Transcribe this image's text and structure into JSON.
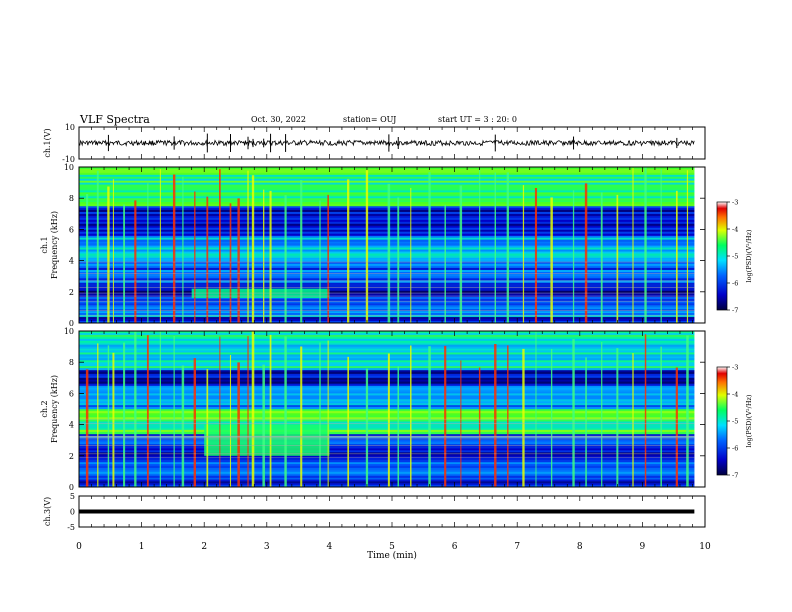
{
  "header": {
    "title": "VLF  Spectra",
    "date": "Oct. 30, 2022",
    "station": "station= OUJ",
    "start_ut": "start  UT =   3  : 20: 0"
  },
  "chart_data": [
    {
      "type": "line",
      "panel": "ch1-waveform",
      "ylabel": "ch.1(V)",
      "ylim": [
        -10,
        10
      ],
      "y_ticks": [
        "10",
        "-10"
      ],
      "xlim": [
        0,
        10
      ],
      "baseline": 0,
      "x_extent": [
        0,
        9.83
      ],
      "spike_times": [
        0.47,
        1.52,
        2.05,
        2.42,
        2.7,
        2.78,
        2.95,
        3.06,
        3.3,
        4.95,
        5.1,
        6.65,
        7.9,
        9.55
      ]
    },
    {
      "type": "heatmap",
      "panel": "ch1-spectrogram",
      "ylabel": "ch.1\nFrequency (kHz)",
      "ylim": [
        0,
        10
      ],
      "y_ticks": [
        "0",
        "2",
        "4",
        "6",
        "8",
        "10"
      ],
      "xlim": [
        0,
        10
      ],
      "x_extent": [
        0,
        9.83
      ],
      "colorbar": {
        "label": "log(PSD)(V²/Hz)",
        "range": [
          -7,
          -3
        ],
        "ticks": [
          "-3",
          "-4",
          "-5",
          "-6",
          "-7"
        ]
      },
      "bands": [
        {
          "f": [
            0.0,
            0.4
          ],
          "level": -6.4
        },
        {
          "f": [
            0.4,
            1.0
          ],
          "level": -5.8
        },
        {
          "f": [
            1.0,
            1.8
          ],
          "level": -6.2
        },
        {
          "f": [
            1.8,
            2.6
          ],
          "level": -6.6
        },
        {
          "f": [
            2.6,
            4.2
          ],
          "level": -6.0
        },
        {
          "f": [
            4.2,
            5.6
          ],
          "level": -5.6
        },
        {
          "f": [
            5.6,
            7.5
          ],
          "level": -6.5
        },
        {
          "f": [
            7.5,
            10.0
          ],
          "level": -5.0
        }
      ],
      "features": [
        {
          "label": "",
          "t": [
            1.8,
            4.0
          ],
          "f": [
            1.6,
            2.2
          ],
          "level": -5.0
        }
      ],
      "impulse_times": [
        0.13,
        0.3,
        0.47,
        0.55,
        0.72,
        0.9,
        1.1,
        1.3,
        1.52,
        1.66,
        1.85,
        2.05,
        2.25,
        2.42,
        2.55,
        2.7,
        2.78,
        2.95,
        3.06,
        3.3,
        3.55,
        3.85,
        3.98,
        4.3,
        4.6,
        4.95,
        5.1,
        5.3,
        5.6,
        5.85,
        6.1,
        6.4,
        6.65,
        6.85,
        7.1,
        7.3,
        7.55,
        7.9,
        8.1,
        8.35,
        8.6,
        8.85,
        9.05,
        9.3,
        9.55,
        9.72
      ]
    },
    {
      "type": "heatmap",
      "panel": "ch2-spectrogram",
      "ylabel": "ch.2\nFrequency (kHz)",
      "ylim": [
        0,
        10
      ],
      "y_ticks": [
        "0",
        "2",
        "4",
        "6",
        "8",
        "10"
      ],
      "xlim": [
        0,
        10
      ],
      "x_extent": [
        0,
        9.83
      ],
      "colorbar": {
        "label": "log(PSD)(V²/Hz)",
        "range": [
          -7,
          -3
        ],
        "ticks": [
          "-3",
          "-4",
          "-5",
          "-6",
          "-7"
        ]
      },
      "bands": [
        {
          "f": [
            0.0,
            0.6
          ],
          "level": -6.3
        },
        {
          "f": [
            0.6,
            1.6
          ],
          "level": -6.1
        },
        {
          "f": [
            1.6,
            2.6
          ],
          "level": -6.5
        },
        {
          "f": [
            2.6,
            3.4
          ],
          "level": -6.0
        },
        {
          "f": [
            3.4,
            5.0
          ],
          "level": -4.9
        },
        {
          "f": [
            5.0,
            6.5
          ],
          "level": -5.8
        },
        {
          "f": [
            6.5,
            7.5
          ],
          "level": -6.4
        },
        {
          "f": [
            7.5,
            10.0
          ],
          "level": -5.3
        }
      ],
      "features": [
        {
          "label": "",
          "t": [
            2.0,
            4.0
          ],
          "f": [
            2.0,
            4.0
          ],
          "level": -4.9
        }
      ],
      "impulse_times": [
        0.13,
        0.3,
        0.47,
        0.55,
        0.72,
        0.9,
        1.1,
        1.3,
        1.52,
        1.66,
        1.85,
        2.05,
        2.25,
        2.42,
        2.55,
        2.7,
        2.78,
        2.95,
        3.06,
        3.3,
        3.55,
        3.85,
        3.98,
        4.3,
        4.6,
        4.95,
        5.1,
        5.3,
        5.6,
        5.85,
        6.1,
        6.4,
        6.65,
        6.85,
        7.1,
        7.3,
        7.55,
        7.9,
        8.1,
        8.35,
        8.6,
        8.85,
        9.05,
        9.3,
        9.55,
        9.72
      ]
    },
    {
      "type": "line",
      "panel": "ch3-waveform",
      "ylabel": "ch.3(V)",
      "ylim": [
        -5,
        5
      ],
      "y_ticks": [
        "5",
        "0",
        "-5"
      ],
      "xlim": [
        0,
        10
      ],
      "x_extent": [
        0,
        9.83
      ],
      "level": 0
    }
  ],
  "x_axis": {
    "label": "Time  (min)",
    "ticks": [
      "0",
      "1",
      "2",
      "3",
      "4",
      "5",
      "6",
      "7",
      "8",
      "9",
      "10"
    ]
  }
}
